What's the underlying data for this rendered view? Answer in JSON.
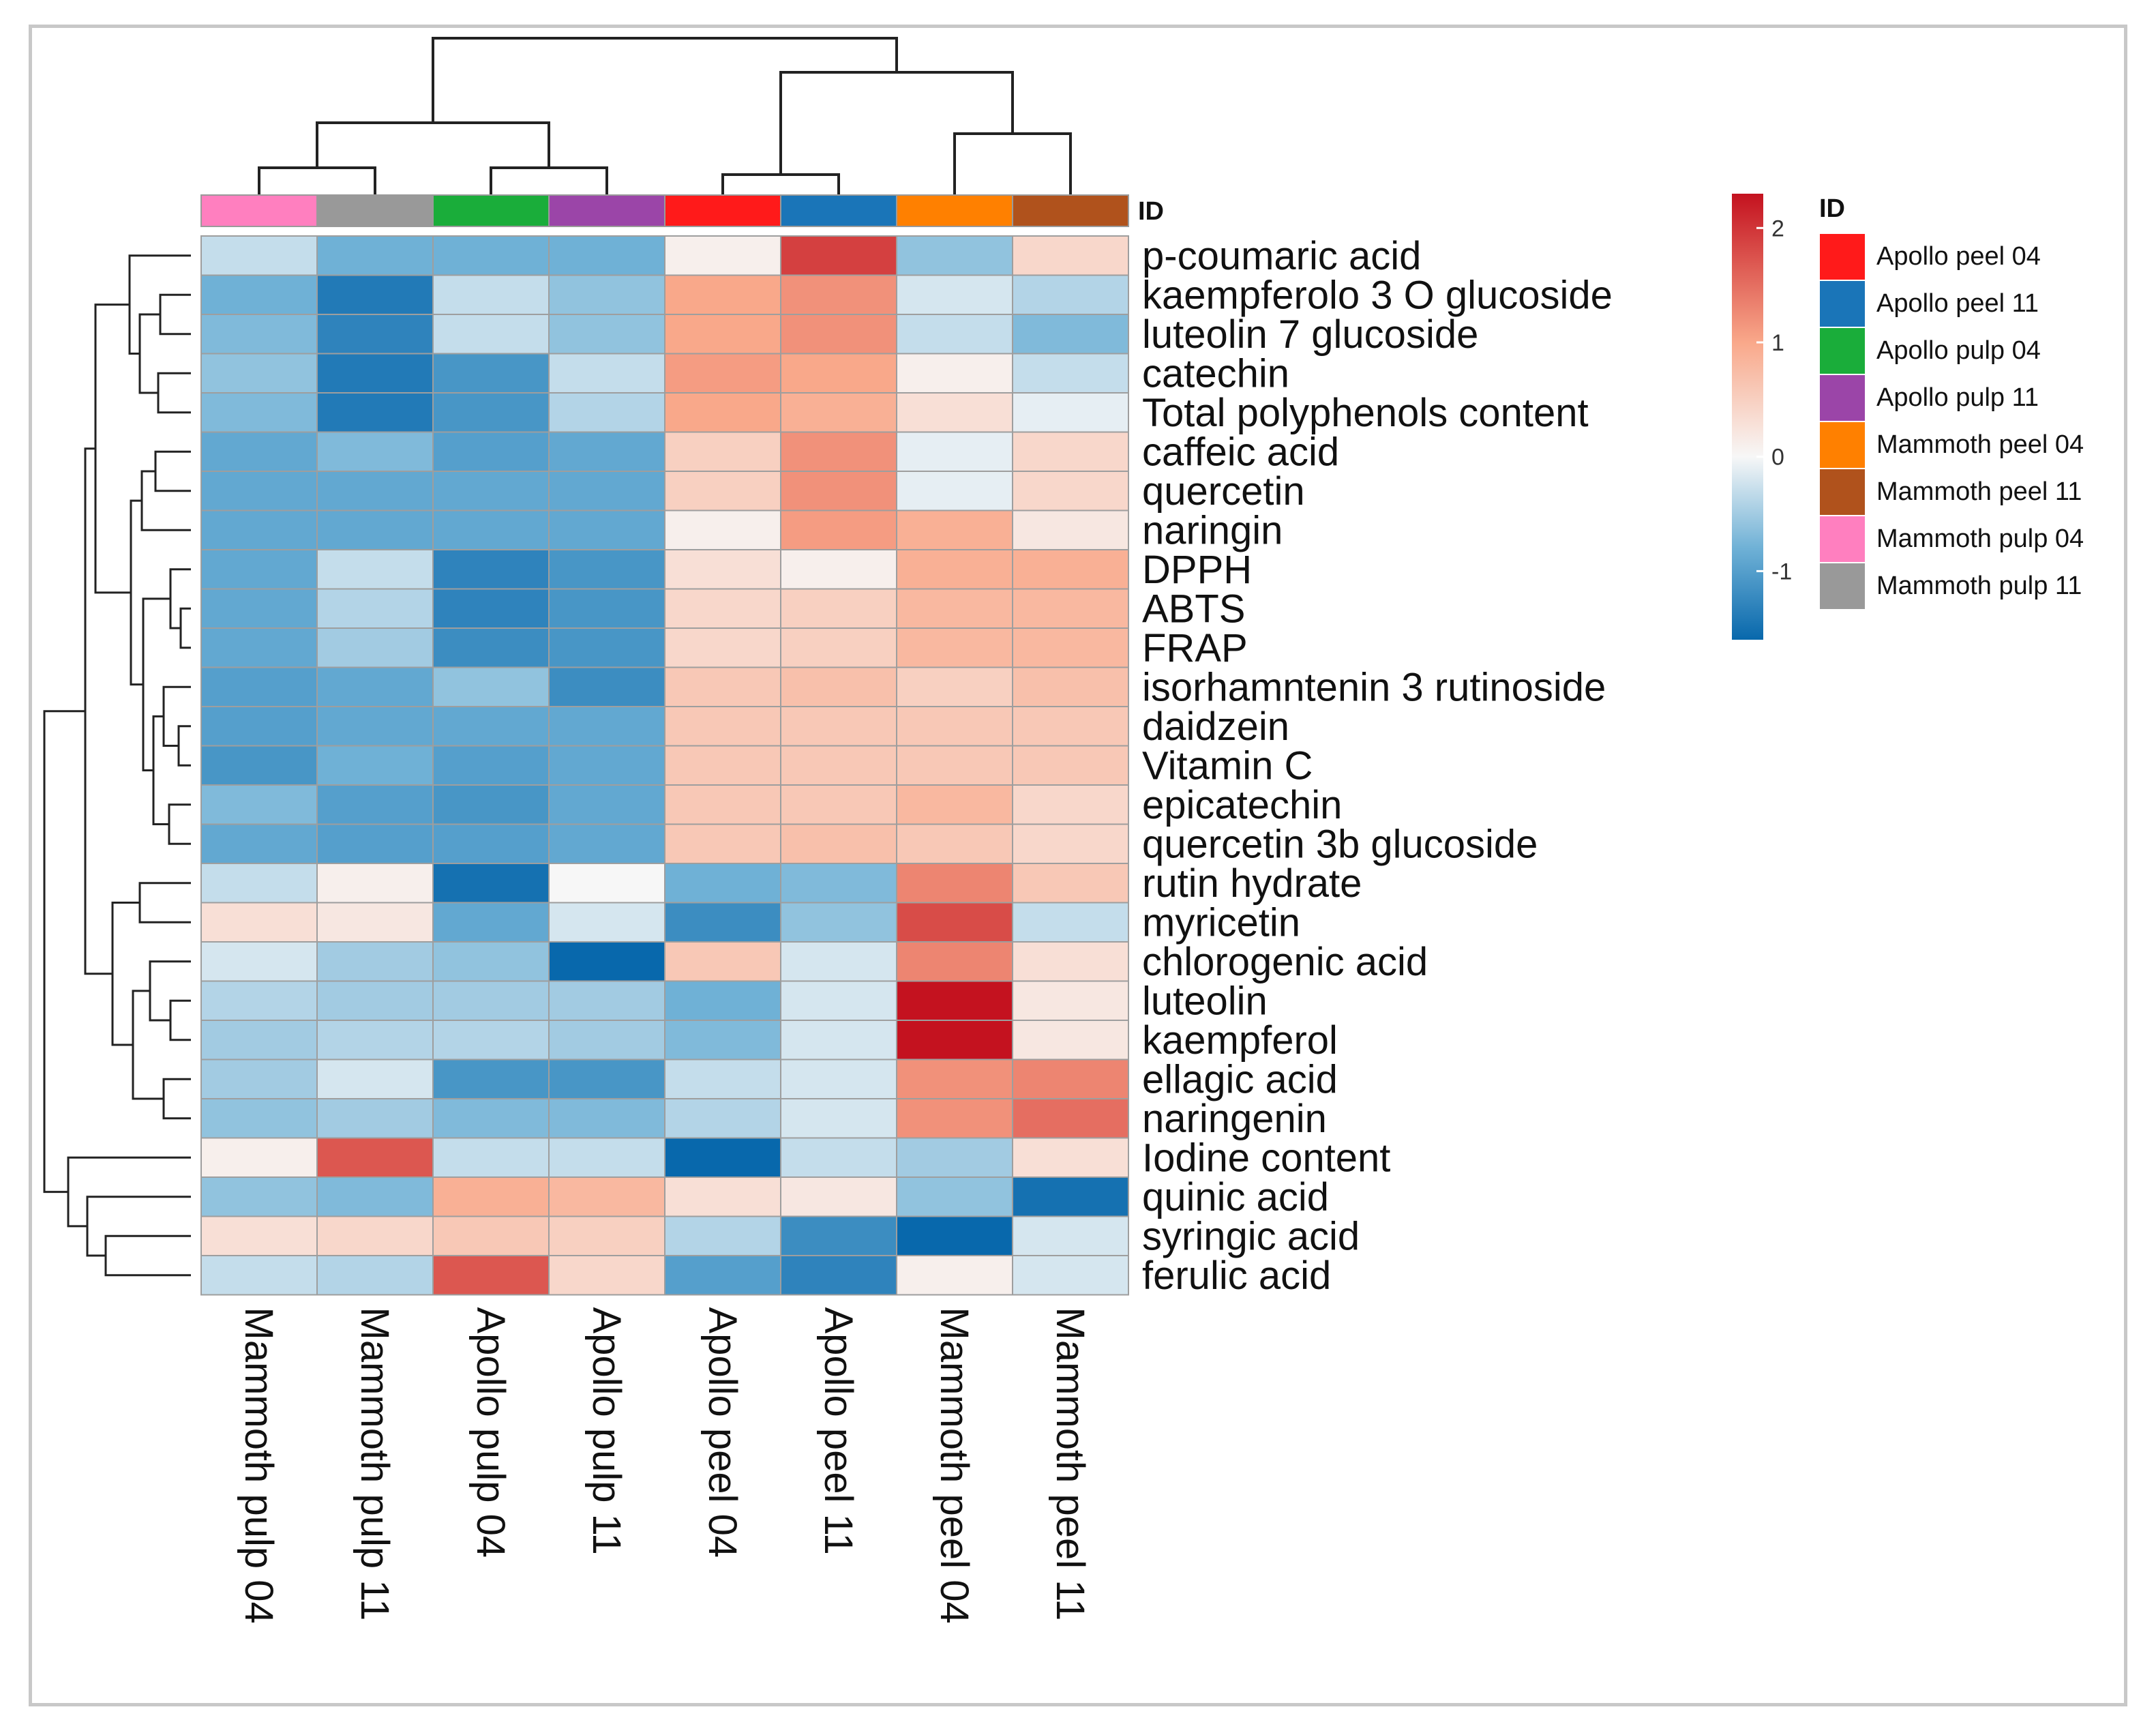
{
  "chart_data": {
    "type": "heatmap",
    "title": "",
    "columns": [
      "Mammoth pulp 04",
      "Mammoth pulp 11",
      "Apollo pulp 04",
      "Apollo pulp 11",
      "Apollo peel 04",
      "Apollo peel 11",
      "Mammoth peel 04",
      "Mammoth peel 11"
    ],
    "rows": [
      "p-coumaric acid",
      "kaempferolo 3 O glucoside",
      "luteolin 7 glucoside",
      "catechin",
      "Total polyphenols content",
      "caffeic acid",
      "quercetin",
      "naringin",
      "DPPH",
      "ABTS",
      "FRAP",
      "isorhamntenin 3 rutinoside",
      "daidzein",
      "Vitamin C",
      "epicatechin",
      "quercetin 3b glucoside",
      "rutin hydrate",
      "myricetin",
      "chlorogenic acid",
      "luteolin",
      "kaempferol",
      "ellagic acid",
      "naringenin",
      "Iodine content",
      "quinic acid",
      "syringic acid",
      "ferulic acid"
    ],
    "values": [
      [
        -0.3,
        -0.8,
        -0.8,
        -0.8,
        0.1,
        1.9,
        -0.6,
        0.4
      ],
      [
        -0.8,
        -1.4,
        -0.3,
        -0.6,
        1.0,
        1.2,
        -0.2,
        -0.4
      ],
      [
        -0.7,
        -1.3,
        -0.3,
        -0.6,
        1.0,
        1.2,
        -0.3,
        -0.7
      ],
      [
        -0.6,
        -1.4,
        -1.1,
        -0.3,
        1.1,
        1.0,
        0.1,
        -0.3
      ],
      [
        -0.7,
        -1.4,
        -1.1,
        -0.4,
        1.0,
        0.9,
        0.3,
        -0.1
      ],
      [
        -0.9,
        -0.7,
        -1.0,
        -0.9,
        0.5,
        1.2,
        -0.1,
        0.4
      ],
      [
        -0.9,
        -0.9,
        -0.9,
        -0.9,
        0.5,
        1.2,
        -0.1,
        0.4
      ],
      [
        -0.9,
        -0.9,
        -0.9,
        -0.9,
        0.1,
        1.1,
        0.9,
        0.2
      ],
      [
        -0.9,
        -0.3,
        -1.3,
        -1.1,
        0.3,
        0.1,
        0.9,
        0.9
      ],
      [
        -0.9,
        -0.4,
        -1.3,
        -1.1,
        0.4,
        0.5,
        0.8,
        0.8
      ],
      [
        -0.9,
        -0.5,
        -1.2,
        -1.1,
        0.4,
        0.5,
        0.8,
        0.8
      ],
      [
        -1.0,
        -0.9,
        -0.6,
        -1.2,
        0.6,
        0.7,
        0.5,
        0.7
      ],
      [
        -1.0,
        -0.9,
        -0.9,
        -0.9,
        0.6,
        0.6,
        0.6,
        0.6
      ],
      [
        -1.1,
        -0.8,
        -1.0,
        -0.9,
        0.6,
        0.6,
        0.6,
        0.6
      ],
      [
        -0.7,
        -1.0,
        -1.1,
        -0.9,
        0.6,
        0.6,
        0.8,
        0.4
      ],
      [
        -0.9,
        -1.0,
        -1.0,
        -0.9,
        0.6,
        0.7,
        0.6,
        0.4
      ],
      [
        -0.3,
        0.1,
        -1.5,
        0.0,
        -0.8,
        -0.7,
        1.3,
        0.6
      ],
      [
        0.3,
        0.2,
        -0.9,
        -0.2,
        -1.2,
        -0.6,
        1.8,
        -0.3
      ],
      [
        -0.2,
        -0.5,
        -0.6,
        -1.7,
        0.6,
        -0.2,
        1.3,
        0.3
      ],
      [
        -0.4,
        -0.5,
        -0.5,
        -0.5,
        -0.8,
        -0.2,
        2.3,
        0.2
      ],
      [
        -0.5,
        -0.4,
        -0.4,
        -0.5,
        -0.7,
        -0.2,
        2.3,
        0.2
      ],
      [
        -0.5,
        -0.2,
        -1.1,
        -1.1,
        -0.3,
        -0.2,
        1.2,
        1.3
      ],
      [
        -0.6,
        -0.5,
        -0.7,
        -0.7,
        -0.4,
        -0.2,
        1.2,
        1.5
      ],
      [
        0.1,
        1.7,
        -0.3,
        -0.3,
        -1.6,
        -0.3,
        -0.5,
        0.3
      ],
      [
        -0.6,
        -0.7,
        0.9,
        0.8,
        0.3,
        0.2,
        -0.6,
        -1.5
      ],
      [
        0.3,
        0.4,
        0.6,
        0.5,
        -0.4,
        -1.2,
        -1.6,
        -0.2
      ],
      [
        -0.3,
        -0.4,
        1.7,
        0.4,
        -1.0,
        -1.3,
        0.1,
        -0.2
      ]
    ],
    "color_scale": {
      "min": -1.6,
      "max": 2.3,
      "stops": [
        {
          "value": -1.6,
          "color": "#0868ac"
        },
        {
          "value": -0.8,
          "color": "#6fb1d6"
        },
        {
          "value": 0,
          "color": "#f7f7f7"
        },
        {
          "value": 1,
          "color": "#f9a88a"
        },
        {
          "value": 2.3,
          "color": "#c4121f"
        }
      ],
      "ticks": [
        "2",
        "1",
        "0",
        "-1"
      ],
      "tick_values": [
        2,
        1,
        0,
        -1
      ]
    },
    "annotation": {
      "label": "ID",
      "legend_title": "ID",
      "groups": [
        {
          "name": "Apollo peel 04",
          "color": "#ff1a1a"
        },
        {
          "name": "Apollo peel 11",
          "color": "#1a75b8"
        },
        {
          "name": "Apollo pulp 04",
          "color": "#1aad3a"
        },
        {
          "name": "Apollo pulp 11",
          "color": "#9b45a8"
        },
        {
          "name": "Mammoth peel 04",
          "color": "#ff8000"
        },
        {
          "name": "Mammoth peel 11",
          "color": "#b0521c"
        },
        {
          "name": "Mammoth pulp 04",
          "color": "#ff7fbf"
        },
        {
          "name": "Mammoth pulp 11",
          "color": "#999999"
        }
      ],
      "column_groups": [
        "Mammoth pulp 04",
        "Mammoth pulp 11",
        "Apollo pulp 04",
        "Apollo pulp 11",
        "Apollo peel 04",
        "Apollo peel 11",
        "Mammoth peel 04",
        "Mammoth peel 11"
      ]
    }
  }
}
